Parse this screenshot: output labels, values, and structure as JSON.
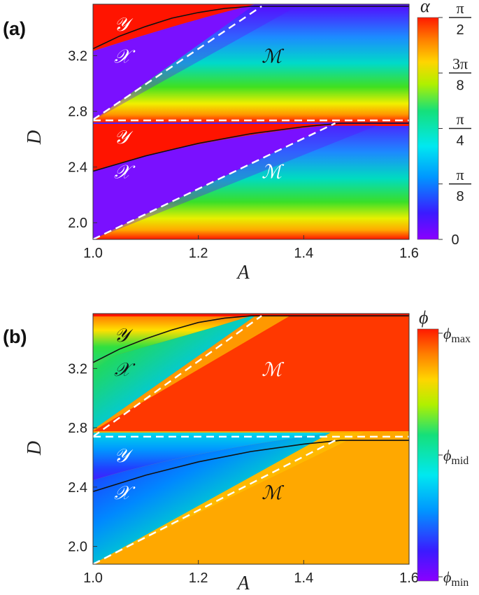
{
  "chart_data": [
    {
      "panel": "(a)",
      "type": "heatmap",
      "xlabel": "A",
      "ylabel": "D",
      "xlim": [
        1.0,
        1.6
      ],
      "ylim": [
        1.88,
        3.57
      ],
      "xticks": [
        1.0,
        1.2,
        1.4,
        1.6
      ],
      "xtick_labels": [
        "1.0",
        "1.2",
        "1.4",
        "1.6"
      ],
      "yticks": [
        2.0,
        2.4,
        2.8,
        3.2
      ],
      "ytick_labels": [
        "2.0",
        "2.4",
        "2.8",
        "3.2"
      ],
      "colorbar": {
        "title": "α",
        "min": 0,
        "max": 1.5708,
        "tick_values": [
          1.5708,
          1.1781,
          0.7854,
          0.3927,
          0
        ],
        "tick_labels": [
          {
            "num": "π",
            "den": "2"
          },
          {
            "num": "3π",
            "den": "8"
          },
          {
            "num": "π",
            "den": "4"
          },
          {
            "num": "π",
            "den": "8"
          },
          {
            "num": "0",
            "den": ""
          }
        ]
      },
      "region_labels": [
        {
          "text": "𝒴",
          "x": 1.04,
          "y": 3.38,
          "color": "#ffffff"
        },
        {
          "text": "𝒳",
          "x": 1.04,
          "y": 3.15,
          "color": "#ffffff"
        },
        {
          "text": "ℳ",
          "x": 1.32,
          "y": 3.15,
          "color": "#111111"
        },
        {
          "text": "𝒴",
          "x": 1.04,
          "y": 2.57,
          "color": "#ffffff"
        },
        {
          "text": "𝒳",
          "x": 1.04,
          "y": 2.32,
          "color": "#ffffff"
        },
        {
          "text": "ℳ",
          "x": 1.32,
          "y": 2.32,
          "color": "#ffffff"
        }
      ],
      "curves": [
        {
          "style": "solid-black",
          "points": [
            [
              1.0,
              3.25
            ],
            [
              1.05,
              3.34
            ],
            [
              1.1,
              3.41
            ],
            [
              1.15,
              3.47
            ],
            [
              1.2,
              3.51
            ],
            [
              1.25,
              3.54
            ],
            [
              1.3,
              3.555
            ],
            [
              1.6,
              3.555
            ]
          ]
        },
        {
          "style": "dashed-white",
          "points": [
            [
              1.0,
              2.74
            ],
            [
              1.32,
              3.555
            ]
          ]
        },
        {
          "style": "dashed-white",
          "points": [
            [
              1.0,
              2.735
            ],
            [
              1.6,
              2.735
            ]
          ]
        },
        {
          "style": "solid-black",
          "points": [
            [
              1.0,
              2.37
            ],
            [
              1.1,
              2.48
            ],
            [
              1.2,
              2.57
            ],
            [
              1.3,
              2.64
            ],
            [
              1.4,
              2.69
            ],
            [
              1.47,
              2.715
            ],
            [
              1.6,
              2.715
            ]
          ]
        },
        {
          "style": "dashed-white",
          "points": [
            [
              1.0,
              1.88
            ],
            [
              1.46,
              2.715
            ]
          ]
        }
      ]
    },
    {
      "panel": "(b)",
      "type": "heatmap",
      "xlabel": "A",
      "ylabel": "D",
      "xlim": [
        1.0,
        1.6
      ],
      "ylim": [
        1.88,
        3.57
      ],
      "xticks": [
        1.0,
        1.2,
        1.4,
        1.6
      ],
      "xtick_labels": [
        "1.0",
        "1.2",
        "1.4",
        "1.6"
      ],
      "yticks": [
        2.0,
        2.4,
        2.8,
        3.2
      ],
      "ytick_labels": [
        "2.0",
        "2.4",
        "2.8",
        "3.2"
      ],
      "colorbar": {
        "title": "ϕ",
        "tick_labels": [
          {
            "base": "ϕ",
            "sub": "max"
          },
          {
            "base": "ϕ",
            "sub": "mid"
          },
          {
            "base": "ϕ",
            "sub": "min"
          }
        ]
      },
      "region_labels": [
        {
          "text": "𝒴",
          "x": 1.04,
          "y": 3.38,
          "color": "#111111"
        },
        {
          "text": "𝒳",
          "x": 1.04,
          "y": 3.15,
          "color": "#111111"
        },
        {
          "text": "ℳ",
          "x": 1.32,
          "y": 3.15,
          "color": "#ffffff"
        },
        {
          "text": "𝒴",
          "x": 1.04,
          "y": 2.57,
          "color": "#ffffff"
        },
        {
          "text": "𝒳",
          "x": 1.04,
          "y": 2.32,
          "color": "#ffffff"
        },
        {
          "text": "ℳ",
          "x": 1.32,
          "y": 2.32,
          "color": "#111111"
        }
      ],
      "curves": [
        {
          "style": "solid-black",
          "points": [
            [
              1.0,
              3.24
            ],
            [
              1.05,
              3.33
            ],
            [
              1.1,
              3.4
            ],
            [
              1.15,
              3.46
            ],
            [
              1.2,
              3.51
            ],
            [
              1.25,
              3.54
            ],
            [
              1.3,
              3.555
            ],
            [
              1.6,
              3.555
            ]
          ]
        },
        {
          "style": "dashed-white",
          "points": [
            [
              1.0,
              2.74
            ],
            [
              1.32,
              3.555
            ]
          ]
        },
        {
          "style": "dashed-white",
          "points": [
            [
              1.0,
              2.74
            ],
            [
              1.6,
              2.74
            ]
          ]
        },
        {
          "style": "solid-black",
          "points": [
            [
              1.0,
              2.37
            ],
            [
              1.1,
              2.48
            ],
            [
              1.2,
              2.57
            ],
            [
              1.3,
              2.64
            ],
            [
              1.4,
              2.69
            ],
            [
              1.47,
              2.715
            ],
            [
              1.6,
              2.715
            ]
          ]
        },
        {
          "style": "dashed-white",
          "points": [
            [
              1.0,
              1.88
            ],
            [
              1.46,
              2.715
            ]
          ]
        }
      ]
    }
  ]
}
